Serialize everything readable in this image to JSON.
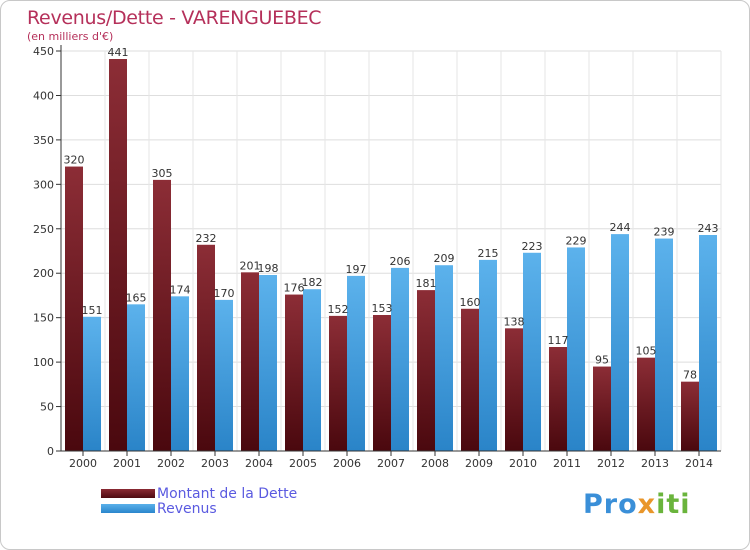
{
  "header": {
    "title": "Revenus/Dette - VARENGUEBEC",
    "subtitle": "(en milliers d'€)"
  },
  "chart_data": {
    "type": "bar",
    "categories": [
      "2000",
      "2001",
      "2002",
      "2003",
      "2004",
      "2005",
      "2006",
      "2007",
      "2008",
      "2009",
      "2010",
      "2011",
      "2012",
      "2013",
      "2014"
    ],
    "series": [
      {
        "name": "Montant de la Dette",
        "color": "#7a1c24",
        "values": [
          320,
          441,
          305,
          232,
          201,
          176,
          152,
          153,
          181,
          160,
          138,
          117,
          95,
          105,
          78
        ]
      },
      {
        "name": "Revenus",
        "color": "#3e9be0",
        "values": [
          151,
          165,
          174,
          170,
          198,
          182,
          197,
          206,
          209,
          215,
          223,
          229,
          244,
          239,
          243
        ]
      }
    ],
    "ylim": [
      0,
      450
    ],
    "yticks": [
      0,
      50,
      100,
      150,
      200,
      250,
      300,
      350,
      400,
      450
    ],
    "grid": true,
    "legend": "bottom-left"
  },
  "legend": {
    "debt_label": "Montant de la Dette",
    "revenue_label": "Revenus"
  },
  "logo": {
    "part1": "Pro",
    "part2": "x",
    "part3": "iti"
  }
}
